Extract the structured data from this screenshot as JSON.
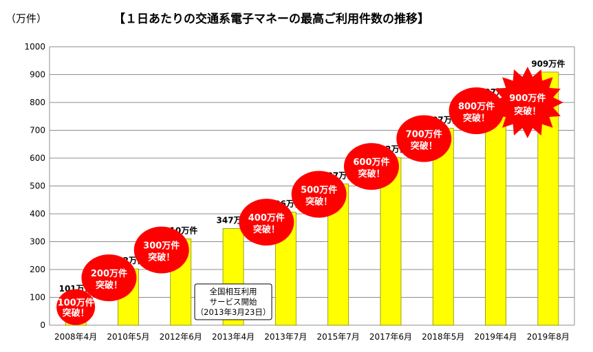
{
  "unit_label": "（万件）",
  "title": "【１日あたりの交通系電子マネーの最高ご利用件数の推移】",
  "colors": {
    "bar": "#ffff00",
    "bar_stroke": "#888800",
    "burst": "#ff0000",
    "grid": "#8c8c8c"
  },
  "chart_data": {
    "type": "bar",
    "categories": [
      "2008年4月",
      "2010年5月",
      "2012年6月",
      "2013年4月",
      "2013年7月",
      "2015年7月",
      "2017年6月",
      "2018年5月",
      "2019年4月",
      "2019年8月"
    ],
    "values": [
      101,
      202,
      310,
      347,
      406,
      507,
      602,
      707,
      807,
      909
    ],
    "value_labels": [
      "101万件",
      "202万件",
      "310万件",
      "347万件",
      "406万件",
      "507万件",
      "602万件",
      "707万件",
      "807万件",
      "909万件"
    ],
    "ylim": [
      0,
      1000
    ],
    "yticks": [
      0,
      100,
      200,
      300,
      400,
      500,
      600,
      700,
      800,
      900,
      1000
    ],
    "grid": true,
    "milestones": [
      {
        "bar_index": 0,
        "lines": [
          "100万件",
          "突破！"
        ]
      },
      {
        "bar_index": 1,
        "lines": [
          "200万件",
          "突破！"
        ]
      },
      {
        "bar_index": 2,
        "lines": [
          "300万件",
          "突破！"
        ]
      },
      {
        "bar_index": 4,
        "lines": [
          "400万件",
          "突破！"
        ]
      },
      {
        "bar_index": 5,
        "lines": [
          "500万件",
          "突破！"
        ]
      },
      {
        "bar_index": 6,
        "lines": [
          "600万件",
          "突破！"
        ]
      },
      {
        "bar_index": 7,
        "lines": [
          "700万件",
          "突破！"
        ]
      },
      {
        "bar_index": 8,
        "lines": [
          "800万件",
          "突破！"
        ]
      },
      {
        "bar_index": 9,
        "lines": [
          "900万件",
          "突破！"
        ]
      }
    ],
    "note": {
      "bar_index": 3,
      "lines": [
        "全国相互利用",
        "サービス開始",
        "（2013年3月23日）"
      ]
    }
  }
}
